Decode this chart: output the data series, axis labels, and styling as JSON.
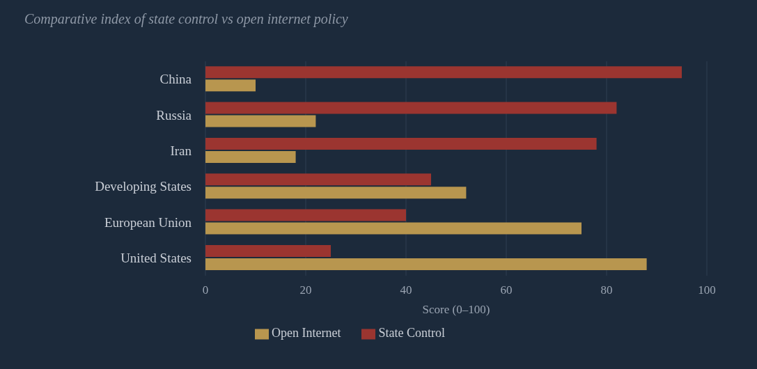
{
  "chart_data": {
    "type": "bar",
    "orientation": "horizontal",
    "title": "Comparative index of state control vs open internet policy",
    "xlabel": "Score (0–100)",
    "categories": [
      "China",
      "Russia",
      "Iran",
      "Developing States",
      "European Union",
      "United States"
    ],
    "series": [
      {
        "name": "State Control",
        "color": "#9b3530",
        "values": [
          95,
          82,
          78,
          45,
          40,
          25
        ]
      },
      {
        "name": "Open Internet",
        "color": "#b8964f",
        "values": [
          10,
          22,
          18,
          52,
          75,
          88
        ]
      }
    ],
    "xlim": [
      0,
      100
    ],
    "xticks": [
      0,
      20,
      40,
      60,
      80,
      100
    ],
    "grid": "x",
    "legend": "bottom"
  }
}
